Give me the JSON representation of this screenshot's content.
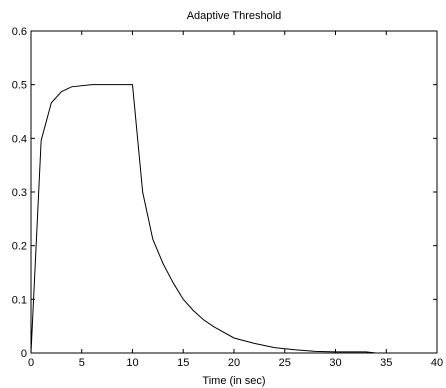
{
  "chart_data": {
    "type": "line",
    "title": "Adaptive Threshold",
    "xlabel": "Time (in sec)",
    "ylabel": "",
    "xlim": [
      0,
      40
    ],
    "ylim": [
      0,
      0.6
    ],
    "xticks": [
      0,
      5,
      10,
      15,
      20,
      25,
      30,
      35,
      40
    ],
    "yticks": [
      0,
      0.1,
      0.2,
      0.3,
      0.4,
      0.5,
      0.6
    ],
    "xtick_labels": [
      "0",
      "5",
      "10",
      "15",
      "20",
      "25",
      "30",
      "35",
      "40"
    ],
    "ytick_labels": [
      "0",
      "0.1",
      "0.2",
      "0.3",
      "0.4",
      "0.5",
      "0.6"
    ],
    "grid": false,
    "legend": "none",
    "series": [
      {
        "color": "#000000",
        "x": [
          0,
          1,
          2,
          3,
          4,
          6,
          8,
          10,
          11,
          12,
          13,
          14,
          15,
          16,
          17,
          18,
          20,
          22,
          24,
          26,
          28,
          30,
          32,
          33,
          34
        ],
        "y": [
          0,
          0.396,
          0.466,
          0.487,
          0.496,
          0.5,
          0.5,
          0.5,
          0.3,
          0.212,
          0.167,
          0.131,
          0.1,
          0.079,
          0.062,
          0.049,
          0.028,
          0.018,
          0.01,
          0.006,
          0.003,
          0.002,
          0.002,
          0.002,
          0
        ]
      }
    ]
  }
}
